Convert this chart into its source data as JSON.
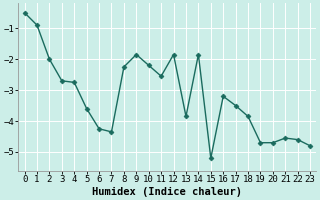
{
  "x": [
    0,
    1,
    2,
    3,
    4,
    5,
    6,
    7,
    8,
    9,
    10,
    11,
    12,
    13,
    14,
    15,
    16,
    17,
    18,
    19,
    20,
    21,
    22,
    23
  ],
  "y": [
    -0.5,
    -0.9,
    -2.0,
    -2.7,
    -2.75,
    -3.6,
    -4.25,
    -4.35,
    -2.25,
    -1.85,
    -2.2,
    -2.55,
    -1.85,
    -3.85,
    -1.85,
    -5.2,
    -3.2,
    -3.5,
    -3.85,
    -4.7,
    -4.7,
    -4.55,
    -4.6,
    -4.8
  ],
  "line_color": "#1a6b5e",
  "marker": "D",
  "markersize": 2.5,
  "linewidth": 1.0,
  "xlabel": "Humidex (Indice chaleur)",
  "xlim": [
    -0.5,
    23.5
  ],
  "ylim": [
    -5.6,
    -0.2
  ],
  "yticks": [
    -5,
    -4,
    -3,
    -2,
    -1
  ],
  "xticks": [
    0,
    1,
    2,
    3,
    4,
    5,
    6,
    7,
    8,
    9,
    10,
    11,
    12,
    13,
    14,
    15,
    16,
    17,
    18,
    19,
    20,
    21,
    22,
    23
  ],
  "bg_color": "#cceee8",
  "grid_color": "#ffffff",
  "xlabel_fontsize": 7.5,
  "tick_fontsize": 6.5,
  "grid_linewidth": 0.7
}
